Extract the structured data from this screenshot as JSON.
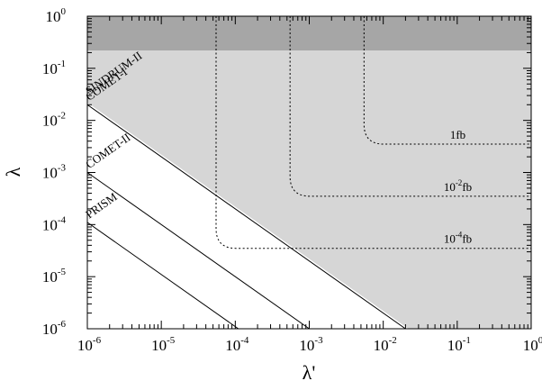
{
  "chart_data": {
    "type": "line",
    "title": "",
    "xlabel": "λ'",
    "ylabel": "λ",
    "xscale": "log",
    "yscale": "log",
    "xlim": [
      1e-06,
      1
    ],
    "ylim": [
      1e-06,
      1
    ],
    "grid": false,
    "x_tick_labels": [
      {
        "base": "10",
        "exp": "-6"
      },
      {
        "base": "10",
        "exp": "-5"
      },
      {
        "base": "10",
        "exp": "-4"
      },
      {
        "base": "10",
        "exp": "-3"
      },
      {
        "base": "10",
        "exp": "-2"
      },
      {
        "base": "10",
        "exp": "-1"
      },
      {
        "base": "10",
        "exp": "0"
      }
    ],
    "y_tick_labels": [
      {
        "base": "10",
        "exp": "-6"
      },
      {
        "base": "10",
        "exp": "-5"
      },
      {
        "base": "10",
        "exp": "-4"
      },
      {
        "base": "10",
        "exp": "-3"
      },
      {
        "base": "10",
        "exp": "-2"
      },
      {
        "base": "10",
        "exp": "-1"
      },
      {
        "base": "10",
        "exp": "0"
      }
    ],
    "regions": [
      {
        "name": "excluded-band",
        "color": "#a6a6a6",
        "y_from": 0.22,
        "y_to": 1
      },
      {
        "name": "sindrum-excluded",
        "color": "#d6d6d6",
        "boundary": "lambda * lambda' = 2.2e-8"
      }
    ],
    "limit_lines": [
      {
        "label": "SINDRUM-II",
        "product": 2.2e-08,
        "style": "boundary"
      },
      {
        "label": "COMET-I",
        "product": 2e-08,
        "style": "solid"
      },
      {
        "label": "COMET-II",
        "product": 1e-09,
        "style": "solid"
      },
      {
        "label": "PRISM",
        "product": 1.1e-10,
        "style": "solid"
      }
    ],
    "cross_section_contours": [
      {
        "label": {
          "base": "1fb",
          "exp": ""
        },
        "x_asymptote": 0.0055,
        "y_asymptote": 0.0035
      },
      {
        "label": {
          "base": "10",
          "exp": "-2",
          "suffix": "fb"
        },
        "x_asymptote": 0.00055,
        "y_asymptote": 0.00035
      },
      {
        "label": {
          "base": "10",
          "exp": "-4",
          "suffix": "fb"
        },
        "x_asymptote": 5.5e-05,
        "y_asymptote": 3.5e-05
      }
    ]
  }
}
